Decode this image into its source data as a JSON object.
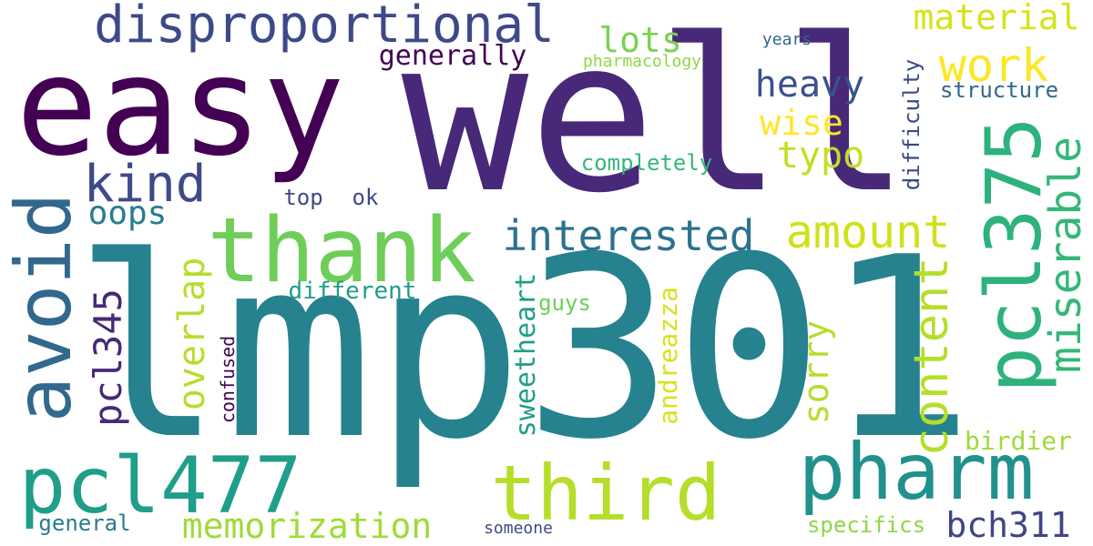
{
  "colors": {
    "background": "#ffffff",
    "palette": [
      "#440154",
      "#482878",
      "#3e4989",
      "#31688e",
      "#26828e",
      "#1f9e89",
      "#35b779",
      "#6ece58",
      "#b5de2b",
      "#fde725"
    ]
  },
  "words": {
    "lmp301": "lmp301",
    "well": "well",
    "easy": "easy",
    "thank": "thank",
    "avoid": "avoid",
    "pcl375": "pcl375",
    "pcl477": "pcl477",
    "pharm": "pharm",
    "third": "third",
    "disproportional": "disproportional",
    "miserable": "miserable",
    "interested": "interested",
    "amount": "amount",
    "content": "content",
    "kind": "kind",
    "work": "work",
    "material": "material",
    "memorization": "memorization",
    "lots": "lots",
    "heavy": "heavy",
    "typo": "typo",
    "wise": "wise",
    "pcl345": "pcl345",
    "overlap": "overlap",
    "oops": "oops",
    "bch311": "bch311",
    "sorry": "sorry",
    "sweetheart": "sweetheart",
    "andreazza": "andreazza",
    "generally": "generally",
    "birdier": "birdier",
    "difficulty": "difficulty",
    "structure": "structure",
    "completely": "completely",
    "different": "different",
    "specifics": "specifics",
    "general": "general",
    "top": "top",
    "ok": "ok",
    "guys": "guys",
    "confused": "confused",
    "pharmacology": "pharmacology",
    "years": "years",
    "someone": "someone"
  }
}
